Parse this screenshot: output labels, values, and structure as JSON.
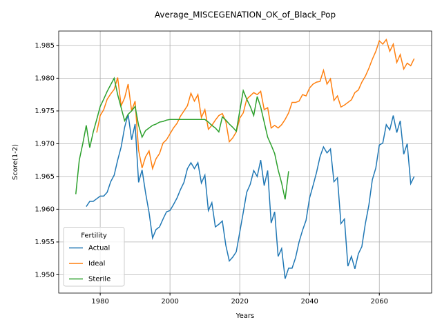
{
  "chart_data": {
    "type": "line",
    "title": "Average_MISCEGENATION_OK_of_Black_Pop",
    "xlabel": "Years",
    "ylabel": "Score(1-2)",
    "x": [
      1973,
      1974,
      1975,
      1976,
      1977,
      1978,
      1979,
      1980,
      1981,
      1982,
      1983,
      1984,
      1985,
      1986,
      1987,
      1988,
      1989,
      1990,
      1991,
      1992,
      1993,
      1994,
      1995,
      1996,
      1997,
      1998,
      1999,
      2000,
      2001,
      2002,
      2003,
      2004,
      2005,
      2006,
      2007,
      2008,
      2009,
      2010,
      2011,
      2012,
      2013,
      2014,
      2015,
      2016,
      2017,
      2018,
      2019,
      2020,
      2021,
      2022,
      2023,
      2024,
      2025,
      2026,
      2027,
      2028,
      2029,
      2030,
      2031,
      2032,
      2033,
      2034,
      2035,
      2036,
      2037,
      2038,
      2039,
      2040,
      2041,
      2042,
      2043,
      2044,
      2045,
      2046,
      2047,
      2048,
      2049,
      2050,
      2051,
      2052,
      2053,
      2054,
      2055,
      2056,
      2057,
      2058,
      2059,
      2060,
      2061,
      2062,
      2063,
      2064,
      2065,
      2066,
      2067,
      2068,
      2069,
      2070
    ],
    "series": [
      {
        "name": "Actual",
        "color": "#1f77b4",
        "values": [
          null,
          null,
          null,
          1.9604,
          1.9612,
          1.9612,
          1.9616,
          1.962,
          1.962,
          1.9626,
          1.9642,
          1.9652,
          1.9675,
          1.9695,
          1.9725,
          1.9745,
          1.9706,
          1.973,
          1.9641,
          1.966,
          1.9625,
          1.9595,
          1.9556,
          1.9569,
          1.9573,
          1.9585,
          1.9596,
          1.9598,
          1.9607,
          1.9617,
          1.963,
          1.9641,
          1.9662,
          1.9671,
          1.9662,
          1.9671,
          1.964,
          1.9652,
          1.9598,
          1.961,
          1.9573,
          1.9577,
          1.9582,
          1.9545,
          1.9521,
          1.9527,
          1.9535,
          1.9565,
          1.9595,
          1.9626,
          1.9638,
          1.9659,
          1.965,
          1.9675,
          1.9636,
          1.9659,
          1.9579,
          1.9596,
          1.9528,
          1.954,
          1.9494,
          1.951,
          1.951,
          1.9526,
          1.955,
          1.9568,
          1.9583,
          1.9617,
          1.9636,
          1.9656,
          1.968,
          1.9695,
          1.9686,
          1.9692,
          1.9642,
          1.9648,
          1.9578,
          1.9585,
          1.9513,
          1.9528,
          1.9509,
          1.9532,
          1.9543,
          1.9578,
          1.9606,
          1.9645,
          1.9663,
          1.9698,
          1.9701,
          1.9729,
          1.9721,
          1.9743,
          1.9717,
          1.9735,
          1.9684,
          1.97,
          1.9639,
          1.965
        ]
      },
      {
        "name": "Ideal",
        "color": "#ff7f0e",
        "values": [
          null,
          null,
          null,
          null,
          null,
          null,
          1.9717,
          1.9743,
          1.9752,
          1.9768,
          1.9776,
          1.9783,
          1.9801,
          1.9758,
          1.977,
          1.9791,
          1.975,
          1.9765,
          1.969,
          1.9663,
          1.968,
          1.9689,
          1.9662,
          1.9677,
          1.9685,
          1.9701,
          1.9706,
          1.9715,
          1.9724,
          1.9731,
          1.9742,
          1.975,
          1.9758,
          1.9777,
          1.9765,
          1.9775,
          1.974,
          1.9752,
          1.9722,
          1.9728,
          1.9736,
          1.9743,
          1.9746,
          1.9734,
          1.9703,
          1.9709,
          1.9718,
          1.9739,
          1.9747,
          1.9768,
          1.9773,
          1.9778,
          1.9775,
          1.978,
          1.9752,
          1.9755,
          1.9724,
          1.9728,
          1.9724,
          1.9729,
          1.9737,
          1.9747,
          1.9763,
          1.9763,
          1.9765,
          1.9775,
          1.9773,
          1.9785,
          1.9791,
          1.9794,
          1.9795,
          1.9812,
          1.9791,
          1.9799,
          1.9766,
          1.9773,
          1.9756,
          1.9759,
          1.9763,
          1.9767,
          1.9778,
          1.9782,
          1.9794,
          1.9803,
          1.9815,
          1.9829,
          1.9841,
          1.9857,
          1.9852,
          1.9859,
          1.9841,
          1.9852,
          1.9824,
          1.9836,
          1.9814,
          1.9823,
          1.9819,
          1.983
        ]
      },
      {
        "name": "Sterile",
        "color": "#2ca02c",
        "values": [
          1.9623,
          1.9675,
          1.97,
          1.9728,
          1.9694,
          1.9718,
          1.9737,
          1.9757,
          1.9768,
          1.978,
          1.979,
          1.98,
          1.9775,
          1.9755,
          1.9735,
          1.9745,
          1.975,
          1.9757,
          1.9728,
          1.971,
          1.972,
          1.9724,
          1.9728,
          1.973,
          1.9733,
          1.9734,
          1.9736,
          1.9737,
          1.9737,
          1.9737,
          1.9737,
          1.9737,
          1.9737,
          1.9737,
          1.9737,
          1.9737,
          1.9737,
          1.9737,
          1.9733,
          1.9728,
          1.9724,
          1.9718,
          1.9741,
          1.9736,
          1.973,
          1.9725,
          1.9719,
          1.975,
          1.9781,
          1.9768,
          1.9757,
          1.9743,
          1.9772,
          1.9756,
          1.9733,
          1.971,
          1.9698,
          1.9685,
          1.966,
          1.964,
          1.9615,
          1.9658,
          null,
          null,
          null,
          null,
          null,
          null,
          null,
          null,
          null,
          null,
          null,
          null,
          null,
          null,
          null,
          null,
          null,
          null,
          null,
          null,
          null,
          null,
          null,
          null,
          null,
          null,
          null,
          null,
          null,
          null,
          null,
          null,
          null,
          null,
          null,
          null
        ]
      }
    ],
    "xlim": [
      1968.1,
      2075.0
    ],
    "xticks": [
      1980,
      2000,
      2020,
      2040,
      2060
    ],
    "ylim": [
      1.9472,
      1.9872
    ],
    "yticks": [
      {
        "value": 1.95,
        "label": "1.950"
      },
      1.955,
      {
        "value": 1.96,
        "label": "1.960"
      },
      1.965,
      {
        "value": 1.97,
        "label": "1.970"
      },
      1.975,
      {
        "value": 1.98,
        "label": "1.980"
      },
      1.985
    ],
    "grid": true,
    "legend": {
      "title": "Fertility",
      "loc": "lower left"
    }
  }
}
